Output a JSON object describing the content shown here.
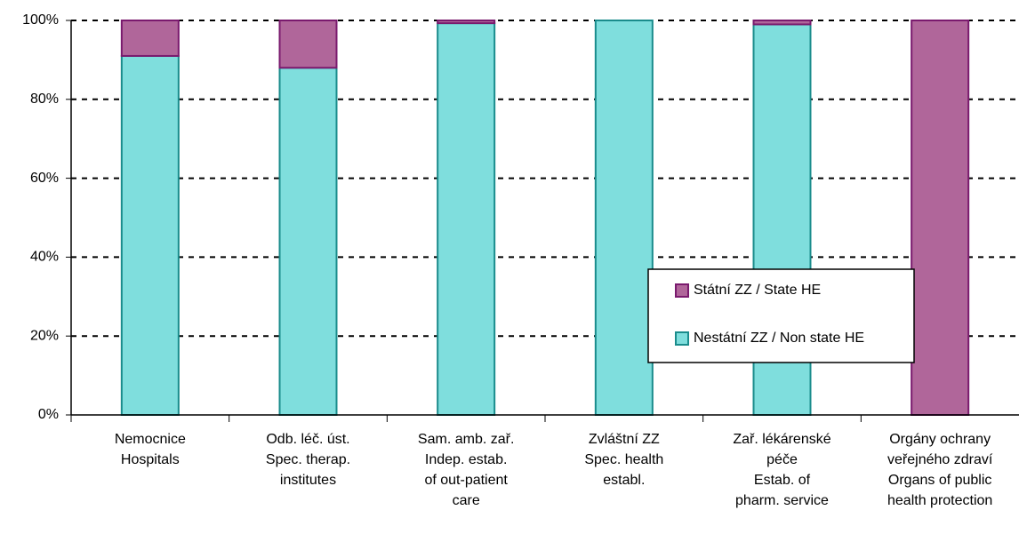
{
  "chart_data": {
    "type": "stacked_bar_100",
    "categories": [
      [
        "Nemocnice",
        "Hospitals"
      ],
      [
        "Odb. léč. úst.",
        "Spec. therap.",
        "institutes"
      ],
      [
        "Sam. amb. zař.",
        "Indep. estab.",
        "of out-patient",
        "care"
      ],
      [
        "Zvláštní ZZ",
        "Spec. health",
        "establ."
      ],
      [
        "Zař. lékárenské",
        "péče",
        "Estab. of",
        "pharm. service"
      ],
      [
        "Orgány ochrany",
        "veřejného zdraví",
        "Organs of public",
        "health protection"
      ]
    ],
    "series": [
      {
        "name": "Nestátní ZZ / Non state HE",
        "color": "#7fdedd",
        "values": [
          91,
          88,
          99.3,
          100,
          99,
          0
        ]
      },
      {
        "name": "Státní ZZ / State HE",
        "color": "#b0669a",
        "values": [
          9,
          12,
          0.7,
          0,
          1,
          100
        ]
      }
    ],
    "ylim": [
      0,
      100
    ],
    "yticks": [
      {
        "value": 0,
        "label": "0%"
      },
      {
        "value": 20,
        "label": "20%"
      },
      {
        "value": 40,
        "label": "40%"
      },
      {
        "value": 60,
        "label": "60%"
      },
      {
        "value": 80,
        "label": "80%"
      },
      {
        "value": 100,
        "label": "100%"
      }
    ],
    "grid": true,
    "legend": "lower right"
  }
}
